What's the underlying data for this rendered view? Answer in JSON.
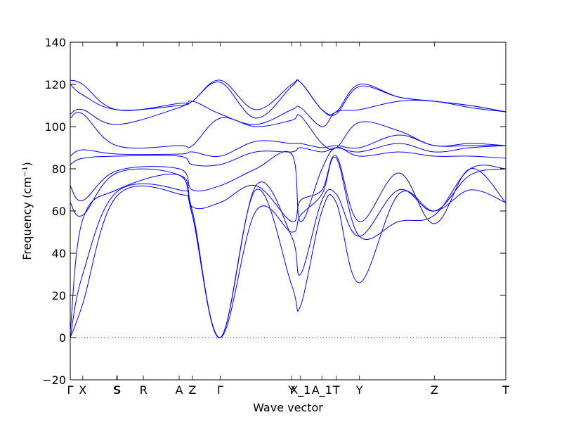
{
  "chart_data": {
    "type": "line",
    "xlabel": "Wave vector",
    "ylabel": "Frequency (cm⁻¹)",
    "ylim": [
      -20,
      140
    ],
    "yticks": [
      -20,
      0,
      20,
      40,
      60,
      80,
      100,
      120,
      140
    ],
    "xlim": [
      0,
      12.2
    ],
    "kpoints": [
      {
        "label": "Γ",
        "x": 0.0
      },
      {
        "label": "X",
        "x": 0.35
      },
      {
        "label": "S",
        "x": 1.3
      },
      {
        "label": "S",
        "x": 1.32
      },
      {
        "label": "R",
        "x": 2.05
      },
      {
        "label": "A",
        "x": 3.05
      },
      {
        "label": "Z",
        "x": 3.42
      },
      {
        "label": "Γ",
        "x": 4.2
      },
      {
        "label": "Y",
        "x": 6.2
      },
      {
        "label": "X_1",
        "x": 6.45
      },
      {
        "label": "A_1",
        "x": 7.05
      },
      {
        "label": "T",
        "x": 7.45
      },
      {
        "label": "Y",
        "x": 8.1
      },
      {
        "label": "Z",
        "x": 10.2
      },
      {
        "label": "T",
        "x": 12.2
      }
    ],
    "zero_line": {
      "y": 0,
      "color": "#0000ff",
      "style": "dotted"
    },
    "band_color": "#0000ff",
    "series": [
      {
        "x": [
          0,
          0.35,
          1.3,
          3.05,
          3.42,
          4.2,
          5.2,
          6.2,
          6.45,
          7.05,
          7.45,
          8.1,
          9.2,
          10.2,
          11.2,
          12.2
        ],
        "values": [
          0,
          16,
          67,
          68,
          58,
          0,
          70,
          25,
          15,
          60,
          64,
          26,
          68,
          60,
          70,
          64
        ]
      },
      {
        "x": [
          0,
          0.35,
          1.3,
          3.05,
          3.42,
          4.2,
          5.2,
          6.2,
          6.45,
          7.05,
          7.45,
          8.1,
          9.2,
          10.2,
          11.2,
          12.2
        ],
        "values": [
          0,
          30,
          69,
          70,
          60,
          0,
          72,
          48,
          30,
          65,
          68,
          48,
          70,
          60,
          77,
          80
        ]
      },
      {
        "x": [
          0,
          0.35,
          1.3,
          3.05,
          3.42,
          4.2,
          5.2,
          6.2,
          6.45,
          7.05,
          7.45,
          8.1,
          9.2,
          10.2,
          11.2,
          12.2
        ],
        "values": [
          3,
          56,
          70,
          77,
          58,
          0,
          60,
          50,
          58,
          68,
          85,
          48,
          55,
          58,
          80,
          80
        ]
      },
      {
        "x": [
          0,
          0.35,
          1.3,
          3.05,
          3.42,
          4.2,
          5.2,
          6.2,
          6.45,
          7.05,
          7.45,
          8.1,
          9.2,
          10.2,
          11.2,
          12.2
        ],
        "values": [
          64,
          58,
          78,
          77,
          62,
          64,
          72,
          55,
          65,
          70,
          86,
          55,
          78,
          54,
          80,
          64
        ]
      },
      {
        "x": [
          0,
          0.35,
          1.3,
          3.05,
          3.42,
          4.2,
          5.2,
          6.2,
          6.45,
          7.05,
          7.45,
          8.1,
          9.2,
          10.2,
          11.2,
          12.2
        ],
        "values": [
          72,
          65,
          79,
          80,
          70,
          72,
          80,
          87,
          55,
          80,
          90,
          86,
          88,
          86,
          86,
          85
        ]
      },
      {
        "x": [
          0,
          0.35,
          1.3,
          3.05,
          3.42,
          4.2,
          5.2,
          6.2,
          6.45,
          7.05,
          7.45,
          8.1,
          9.2,
          10.2,
          11.2,
          12.2
        ],
        "values": [
          82,
          85,
          86,
          86,
          82,
          82,
          88,
          88,
          90,
          88,
          90,
          88,
          92,
          88,
          90,
          91
        ]
      },
      {
        "x": [
          0,
          0.35,
          1.3,
          3.05,
          3.42,
          4.2,
          5.2,
          6.2,
          6.45,
          7.05,
          7.45,
          8.1,
          9.2,
          10.2,
          11.2,
          12.2
        ],
        "values": [
          86,
          89,
          87,
          87,
          88,
          86,
          93,
          92,
          92,
          90,
          91,
          90,
          96,
          91,
          91,
          91
        ]
      },
      {
        "x": [
          0,
          0.35,
          1.3,
          3.05,
          3.42,
          4.2,
          5.2,
          6.2,
          6.45,
          7.05,
          7.45,
          8.1,
          9.2,
          10.2,
          11.2,
          12.2
        ],
        "values": [
          104,
          106,
          91,
          91,
          91,
          104,
          100,
          103,
          105,
          92,
          90,
          102,
          98,
          91,
          92,
          91
        ]
      },
      {
        "x": [
          0,
          0.35,
          1.3,
          3.05,
          3.42,
          4.2,
          5.2,
          6.2,
          6.45,
          7.05,
          7.45,
          8.1,
          9.2,
          10.2,
          11.2,
          12.2
        ],
        "values": [
          106,
          108,
          101,
          109,
          112,
          106,
          101,
          108,
          109,
          100,
          107,
          108,
          112,
          112,
          109,
          107
        ]
      },
      {
        "x": [
          0,
          0.35,
          1.3,
          3.05,
          3.42,
          4.2,
          5.2,
          6.2,
          6.45,
          7.05,
          7.45,
          8.1,
          9.2,
          10.2,
          11.2,
          12.2
        ],
        "values": [
          120,
          115,
          108,
          110,
          112,
          121,
          104,
          119,
          121,
          108,
          106,
          119,
          114,
          112,
          110,
          107
        ]
      },
      {
        "x": [
          0,
          0.35,
          1.3,
          3.05,
          3.42,
          4.2,
          5.2,
          6.2,
          6.45,
          7.05,
          7.45,
          8.1,
          9.2,
          10.2,
          11.2,
          12.2
        ],
        "values": [
          122,
          120,
          108,
          111,
          112,
          122,
          108,
          120,
          121,
          108,
          107,
          120,
          114,
          112,
          110,
          107
        ]
      }
    ]
  }
}
